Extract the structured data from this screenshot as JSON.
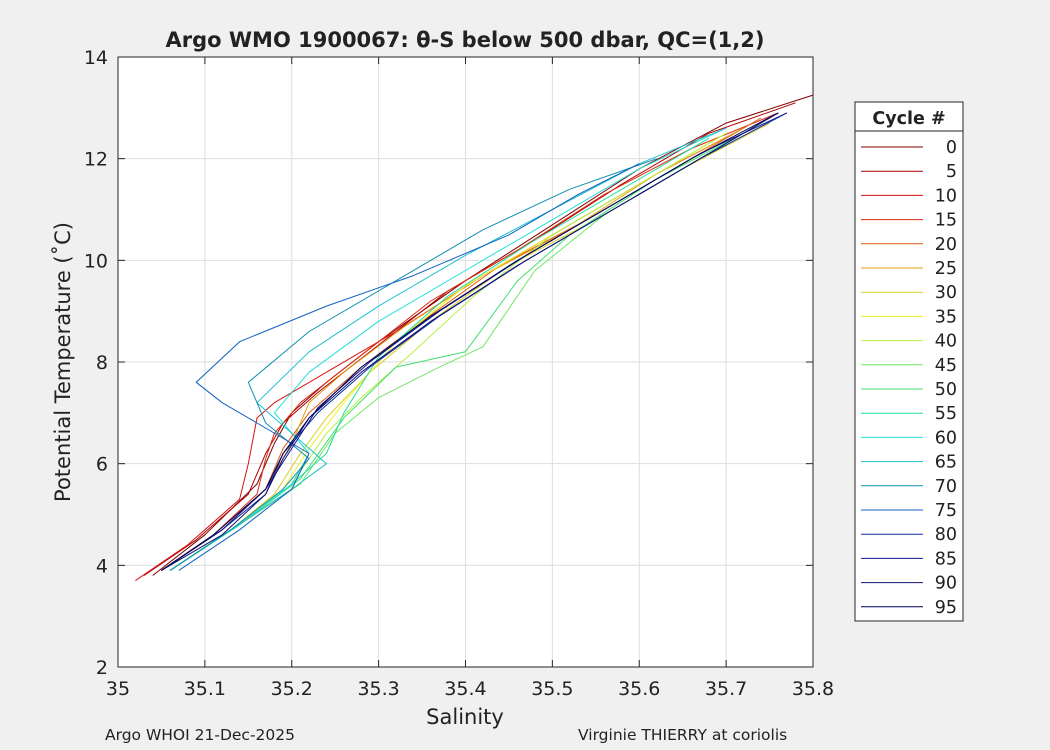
{
  "chart_data": {
    "type": "line",
    "title": "Argo WMO 1900067: θ-S below 500 dbar,  QC=(1,2)",
    "xlabel": "Salinity",
    "ylabel": "Potential Temperature (˚C)",
    "xlim": [
      35,
      35.8
    ],
    "ylim": [
      2,
      14
    ],
    "grid": true,
    "x_ticks": [
      "35",
      "35.1",
      "35.2",
      "35.3",
      "35.4",
      "35.5",
      "35.6",
      "35.7",
      "35.8"
    ],
    "y_ticks": [
      "2",
      "4",
      "6",
      "8",
      "10",
      "12",
      "14"
    ],
    "legend": {
      "title": "Cycle #",
      "placement": "right outside",
      "entries": [
        {
          "label": "0",
          "color": "#800000"
        },
        {
          "label": "5",
          "color": "#b00000"
        },
        {
          "label": "10",
          "color": "#d81010"
        },
        {
          "label": "15",
          "color": "#e02a10"
        },
        {
          "label": "20",
          "color": "#e05a10"
        },
        {
          "label": "25",
          "color": "#e0a010"
        },
        {
          "label": "30",
          "color": "#d8d020"
        },
        {
          "label": "35",
          "color": "#f0f020"
        },
        {
          "label": "40",
          "color": "#b8f040"
        },
        {
          "label": "45",
          "color": "#70e860"
        },
        {
          "label": "50",
          "color": "#40e070"
        },
        {
          "label": "55",
          "color": "#20e0a0"
        },
        {
          "label": "60",
          "color": "#20e0d8"
        },
        {
          "label": "65",
          "color": "#20c0d0"
        },
        {
          "label": "70",
          "color": "#1090b0"
        },
        {
          "label": "75",
          "color": "#1060c0"
        },
        {
          "label": "80",
          "color": "#1030a0"
        },
        {
          "label": "85",
          "color": "#101890"
        },
        {
          "label": "90",
          "color": "#101070"
        },
        {
          "label": "95",
          "color": "#000058"
        }
      ]
    },
    "series": [
      {
        "name": "0",
        "color": "#800000",
        "s": [
          35.04,
          35.1,
          35.16,
          35.18,
          35.2,
          35.24,
          35.3,
          35.4,
          35.5,
          35.6,
          35.7,
          35.8
        ],
        "t": [
          3.8,
          4.6,
          5.6,
          6.4,
          7.0,
          7.6,
          8.4,
          9.6,
          10.7,
          11.8,
          12.7,
          13.25
        ]
      },
      {
        "name": "5",
        "color": "#b00000",
        "s": [
          35.03,
          35.09,
          35.15,
          35.17,
          35.19,
          35.23,
          35.29,
          35.38,
          35.48,
          35.58,
          35.68,
          35.78
        ],
        "t": [
          3.8,
          4.5,
          5.4,
          6.2,
          6.8,
          7.4,
          8.2,
          9.4,
          10.4,
          11.5,
          12.5,
          13.1
        ]
      },
      {
        "name": "10",
        "color": "#d81010",
        "s": [
          35.02,
          35.08,
          35.14,
          35.15,
          35.16,
          35.18,
          35.24,
          35.32,
          35.42,
          35.52,
          35.62,
          35.72
        ],
        "t": [
          3.7,
          4.4,
          5.3,
          6.0,
          6.9,
          7.2,
          7.8,
          8.6,
          9.7,
          10.7,
          11.7,
          12.6
        ]
      },
      {
        "name": "15",
        "color": "#e02a10",
        "s": [
          35.05,
          35.11,
          35.16,
          35.17,
          35.18,
          35.21,
          35.27,
          35.36,
          35.46,
          35.56,
          35.66,
          35.76
        ],
        "t": [
          3.9,
          4.6,
          5.4,
          6.1,
          6.6,
          7.2,
          8.0,
          9.2,
          10.2,
          11.3,
          12.2,
          12.9
        ]
      },
      {
        "name": "20",
        "color": "#e05a10",
        "s": [
          35.05,
          35.12,
          35.17,
          35.19,
          35.22,
          35.28,
          35.35,
          35.44,
          35.54,
          35.64,
          35.74
        ],
        "t": [
          3.9,
          4.7,
          5.5,
          6.3,
          7.0,
          7.9,
          8.8,
          9.9,
          10.8,
          11.8,
          12.8
        ]
      },
      {
        "name": "25",
        "color": "#e0a010",
        "s": [
          35.05,
          35.12,
          35.17,
          35.2,
          35.22,
          35.26,
          35.33,
          35.42,
          35.52,
          35.62,
          35.72
        ],
        "t": [
          3.9,
          4.7,
          5.5,
          6.4,
          7.2,
          7.8,
          8.7,
          9.7,
          10.6,
          11.7,
          12.6
        ]
      },
      {
        "name": "30",
        "color": "#d8d020",
        "s": [
          35.06,
          35.13,
          35.18,
          35.21,
          35.24,
          35.29,
          35.36,
          35.45,
          35.55,
          35.65,
          35.75
        ],
        "t": [
          3.9,
          4.7,
          5.4,
          6.2,
          6.9,
          7.8,
          8.8,
          9.9,
          10.8,
          11.8,
          12.7
        ]
      },
      {
        "name": "35",
        "color": "#f0f020",
        "s": [
          35.06,
          35.13,
          35.19,
          35.22,
          35.26,
          35.32,
          35.4,
          35.5,
          35.6,
          35.7
        ],
        "t": [
          3.9,
          4.7,
          5.5,
          6.3,
          7.2,
          8.4,
          9.5,
          10.5,
          11.5,
          12.5
        ]
      },
      {
        "name": "40",
        "color": "#b8f040",
        "s": [
          35.06,
          35.14,
          35.2,
          35.24,
          35.28,
          35.34,
          35.41,
          35.5,
          35.6,
          35.7
        ],
        "t": [
          3.9,
          4.8,
          5.6,
          6.6,
          7.3,
          8.2,
          9.3,
          10.5,
          11.5,
          12.5
        ]
      },
      {
        "name": "45",
        "color": "#70e860",
        "s": [
          35.06,
          35.14,
          35.21,
          35.25,
          35.3,
          35.37,
          35.42,
          35.44,
          35.48,
          35.56,
          35.66,
          35.74
        ],
        "t": [
          3.9,
          4.8,
          5.6,
          6.6,
          7.3,
          7.9,
          8.3,
          8.8,
          9.8,
          10.9,
          11.9,
          12.7
        ]
      },
      {
        "name": "50",
        "color": "#40e070",
        "s": [
          35.06,
          35.14,
          35.21,
          35.26,
          35.32,
          35.4,
          35.43,
          35.46,
          35.52,
          35.62,
          35.72
        ],
        "t": [
          3.9,
          4.8,
          5.7,
          6.9,
          7.9,
          8.2,
          8.9,
          9.6,
          10.5,
          11.6,
          12.5
        ]
      },
      {
        "name": "55",
        "color": "#20e0a0",
        "s": [
          35.06,
          35.14,
          35.2,
          35.24,
          35.26,
          35.3,
          35.38,
          35.48,
          35.58,
          35.68
        ],
        "t": [
          3.9,
          4.8,
          5.6,
          6.2,
          7.0,
          8.1,
          9.3,
          10.4,
          11.4,
          12.4
        ]
      },
      {
        "name": "60",
        "color": "#20e0d8",
        "s": [
          35.06,
          35.14,
          35.2,
          35.22,
          35.18,
          35.22,
          35.3,
          35.4,
          35.5,
          35.6,
          35.7
        ],
        "t": [
          3.9,
          4.8,
          5.6,
          6.2,
          7.0,
          7.8,
          8.8,
          9.8,
          10.8,
          11.8,
          12.6
        ]
      },
      {
        "name": "65",
        "color": "#20c0d0",
        "s": [
          35.06,
          35.13,
          35.2,
          35.24,
          35.2,
          35.16,
          35.22,
          35.3,
          35.4,
          35.5,
          35.6,
          35.7
        ],
        "t": [
          3.9,
          4.7,
          5.5,
          6.0,
          6.6,
          7.2,
          8.2,
          9.1,
          10.1,
          11.0,
          11.9,
          12.6
        ]
      },
      {
        "name": "70",
        "color": "#1090b0",
        "s": [
          35.06,
          35.13,
          35.19,
          35.22,
          35.17,
          35.15,
          35.22,
          35.31,
          35.42,
          35.52,
          35.62
        ],
        "t": [
          3.9,
          4.7,
          5.5,
          6.1,
          6.8,
          7.6,
          8.6,
          9.5,
          10.6,
          11.4,
          12.0
        ]
      },
      {
        "name": "75",
        "color": "#1060c0",
        "s": [
          35.07,
          35.14,
          35.2,
          35.22,
          35.16,
          35.12,
          35.09,
          35.14,
          35.24,
          35.34,
          35.45,
          35.53,
          35.6
        ],
        "t": [
          3.9,
          4.7,
          5.5,
          6.2,
          6.8,
          7.2,
          7.6,
          8.4,
          9.1,
          9.7,
          10.5,
          11.3,
          11.9
        ]
      },
      {
        "name": "80",
        "color": "#1030a0",
        "s": [
          35.05,
          35.12,
          35.17,
          35.19,
          35.23,
          35.29,
          35.37,
          35.47,
          35.57,
          35.67,
          35.77
        ],
        "t": [
          3.9,
          4.7,
          5.4,
          6.2,
          7.0,
          7.9,
          8.9,
          10.0,
          11.0,
          12.0,
          12.9
        ]
      },
      {
        "name": "85",
        "color": "#101890",
        "s": [
          35.05,
          35.12,
          35.17,
          35.2,
          35.23,
          35.29,
          35.37,
          35.47,
          35.57,
          35.67,
          35.77
        ],
        "t": [
          3.9,
          4.7,
          5.5,
          6.3,
          7.1,
          8.0,
          9.0,
          10.1,
          11.1,
          12.1,
          12.9
        ]
      },
      {
        "name": "90",
        "color": "#101070",
        "s": [
          35.05,
          35.12,
          35.17,
          35.19,
          35.22,
          35.28,
          35.36,
          35.46,
          35.56,
          35.66,
          35.76
        ],
        "t": [
          3.9,
          4.6,
          5.4,
          6.1,
          6.9,
          7.8,
          8.8,
          9.9,
          10.9,
          11.9,
          12.9
        ]
      },
      {
        "name": "95",
        "color": "#000058",
        "s": [
          35.05,
          35.11,
          35.17,
          35.19,
          35.22,
          35.28,
          35.36,
          35.46,
          35.56,
          35.66,
          35.76
        ],
        "t": [
          3.9,
          4.6,
          5.5,
          6.2,
          6.9,
          7.9,
          8.9,
          10.0,
          11.0,
          12.0,
          12.9
        ]
      }
    ]
  },
  "footer": {
    "left": "Argo WHOI 21-Dec-2025",
    "right": "Virginie THIERRY at coriolis"
  }
}
